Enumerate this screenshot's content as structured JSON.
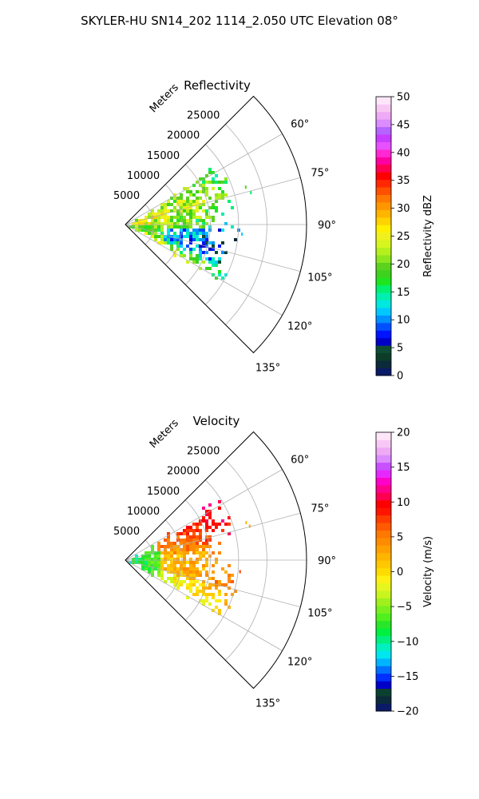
{
  "figure": {
    "suptitle": "SKYLER-HU  SN14_202  1114_2.050 UTC Elevation 08°"
  },
  "chart_data": [
    {
      "type": "heatmap",
      "subtype": "polar-sector (PPI radar scan)",
      "title": "Reflectivity",
      "radial_axis_label": "Meters",
      "radial_ticks": [
        5000,
        10000,
        15000,
        20000,
        25000
      ],
      "radial_tick_labels": [
        "5000",
        "10000",
        "15000",
        "20000",
        "25000"
      ],
      "radial_range": [
        0,
        32000
      ],
      "azimuth_ticks_deg": [
        60,
        75,
        90,
        105,
        120,
        135
      ],
      "azimuth_tick_labels": [
        "60°",
        "75°",
        "90°",
        "105°",
        "120°",
        "135°"
      ],
      "azimuth_range_deg": [
        45,
        135
      ],
      "grid": true,
      "colorbar": {
        "label": "Reflectivity dBZ",
        "range": [
          0,
          50
        ],
        "ticks": [
          0,
          5,
          10,
          15,
          20,
          25,
          30,
          35,
          40,
          45,
          50
        ],
        "tick_labels": [
          "0",
          "5",
          "10",
          "15",
          "20",
          "25",
          "30",
          "35",
          "40",
          "45",
          "50"
        ],
        "colormap": "NWS reflectivity (discrete)"
      },
      "echo_region": {
        "azimuth_range_deg": [
          55,
          122
        ],
        "range_max_m": 20000,
        "dominant_value_range": [
          12,
          25
        ],
        "near_range_value": 24
      }
    },
    {
      "type": "heatmap",
      "subtype": "polar-sector (PPI radar scan)",
      "title": "Velocity",
      "radial_axis_label": "Meters",
      "radial_ticks": [
        5000,
        10000,
        15000,
        20000,
        25000
      ],
      "radial_tick_labels": [
        "5000",
        "10000",
        "15000",
        "20000",
        "25000"
      ],
      "radial_range": [
        0,
        32000
      ],
      "azimuth_ticks_deg": [
        60,
        75,
        90,
        105,
        120,
        135
      ],
      "azimuth_tick_labels": [
        "60°",
        "75°",
        "90°",
        "105°",
        "120°",
        "135°"
      ],
      "azimuth_range_deg": [
        45,
        135
      ],
      "grid": true,
      "colorbar": {
        "label": "Velocity (m/s)",
        "range": [
          -20,
          20
        ],
        "ticks": [
          -20,
          -15,
          -10,
          -5,
          0,
          5,
          10,
          15,
          20
        ],
        "tick_labels": [
          "−20",
          "−15",
          "−10",
          "−5",
          "0",
          "5",
          "10",
          "15",
          "20"
        ],
        "colormap": "radar velocity (discrete)"
      },
      "echo_region": {
        "azimuth_range_deg": [
          55,
          122
        ],
        "range_max_m": 20000,
        "near_range_value": -10,
        "mid_value": 0,
        "far_north_value": 12,
        "far_south_value": -3
      }
    }
  ]
}
